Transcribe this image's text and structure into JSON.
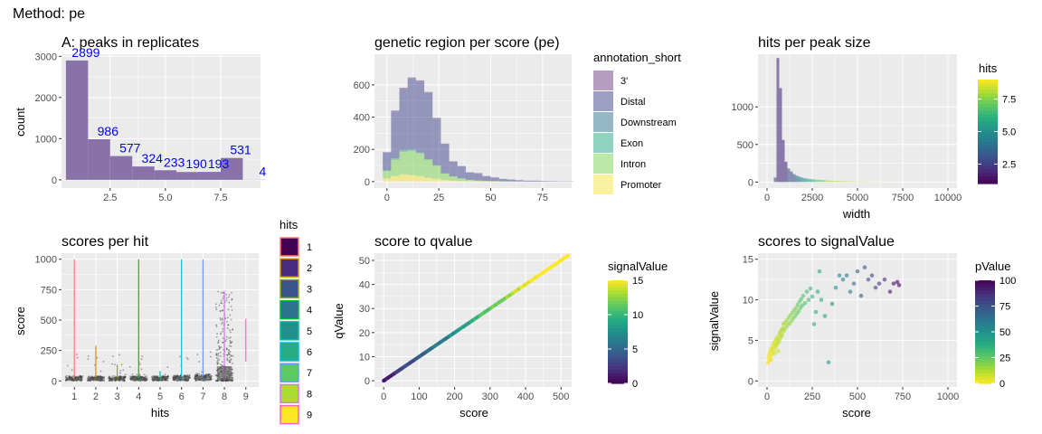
{
  "page_title": "Method: pe",
  "chart_data": [
    {
      "id": "A",
      "type": "bar",
      "title": "A: peaks in replicates",
      "xlabel": "",
      "ylabel": "count",
      "x": [
        1,
        2,
        3,
        4,
        5,
        6,
        7,
        8,
        9
      ],
      "values": [
        2899,
        986,
        577,
        324,
        233,
        190,
        193,
        531,
        4
      ],
      "data_labels": [
        "2899",
        "986",
        "577",
        "324",
        "233",
        "190",
        "193",
        "531",
        "4"
      ],
      "bar_color": "#8872a8",
      "label_color": "#0000ff",
      "xlim": [
        0.3,
        9.3
      ],
      "ylim": [
        -200,
        3050
      ],
      "xticks": [
        2.5,
        5.0,
        7.5
      ],
      "xtick_labels": [
        "2.5",
        "5.0",
        "7.5"
      ],
      "yticks": [
        0,
        1000,
        2000,
        3000
      ],
      "ytick_labels": [
        "0",
        "1000",
        "2000",
        "3000"
      ]
    },
    {
      "id": "B",
      "type": "area",
      "title": "genetic region per score (pe)",
      "xlabel": "",
      "ylabel": "",
      "bin_width": 4,
      "x_bins_start": [
        -2,
        2,
        6,
        10,
        14,
        18,
        22,
        26,
        30,
        34,
        38,
        42,
        46,
        50,
        54,
        58,
        62,
        66,
        70,
        74,
        78,
        82,
        86
      ],
      "series": [
        {
          "name": "3'",
          "color": "#6f3c83",
          "values": [
            3,
            6,
            7,
            8,
            7,
            6,
            5,
            4,
            3,
            2,
            2,
            1,
            1,
            1,
            0,
            0,
            0,
            0,
            0,
            0,
            0,
            0,
            0
          ]
        },
        {
          "name": "Distal",
          "color": "#3b3f8c",
          "values": [
            110,
            290,
            380,
            440,
            440,
            410,
            290,
            180,
            90,
            75,
            45,
            45,
            30,
            22,
            15,
            12,
            8,
            6,
            6,
            4,
            3,
            2,
            2
          ]
        },
        {
          "name": "Downstream",
          "color": "#2d6f8e",
          "values": [
            0,
            0,
            0,
            0,
            0,
            0,
            0,
            0,
            0,
            0,
            0,
            0,
            0,
            0,
            0,
            0,
            0,
            0,
            0,
            0,
            0,
            0,
            0
          ]
        },
        {
          "name": "Exon",
          "color": "#22a884",
          "values": [
            5,
            10,
            10,
            8,
            6,
            5,
            3,
            2,
            2,
            1,
            1,
            0,
            0,
            0,
            0,
            0,
            0,
            0,
            0,
            0,
            0,
            0,
            0
          ]
        },
        {
          "name": "Intron",
          "color": "#7ad151",
          "values": [
            45,
            100,
            140,
            150,
            140,
            110,
            80,
            40,
            25,
            15,
            8,
            5,
            3,
            2,
            2,
            1,
            1,
            0,
            0,
            0,
            0,
            0,
            0
          ]
        },
        {
          "name": "Promoter",
          "color": "#f0e442",
          "values": [
            20,
            35,
            45,
            40,
            35,
            25,
            18,
            10,
            6,
            4,
            2,
            2,
            1,
            1,
            0,
            0,
            0,
            0,
            0,
            0,
            0,
            0,
            0
          ]
        }
      ],
      "legend_title": "annotation_short",
      "legend_position": "right",
      "xlim": [
        -6,
        89
      ],
      "ylim": [
        -40,
        790
      ],
      "xticks": [
        0,
        25,
        50,
        75
      ],
      "xtick_labels": [
        "0",
        "25",
        "50",
        "75"
      ],
      "yticks": [
        0,
        200,
        400,
        600
      ],
      "ytick_labels": [
        "0",
        "200",
        "400",
        "600"
      ]
    },
    {
      "id": "C",
      "type": "bar",
      "title": "hits per peak size",
      "xlabel": "width",
      "ylabel": "",
      "bin_width": 150,
      "x_bins_start": [
        375,
        525,
        675,
        825,
        975,
        1125,
        1275,
        1425,
        1575,
        1725,
        1875,
        2025,
        2175,
        2325,
        2475,
        2625,
        2775,
        2925,
        3075,
        3225,
        3375,
        3525,
        3675,
        3825,
        3975,
        4125,
        4275,
        4425,
        4575,
        4725,
        4875,
        5025,
        5175,
        5325,
        5475,
        5625,
        5775,
        5925,
        6075,
        6225,
        6375,
        6525,
        6675,
        6825,
        6975,
        7125,
        7275
      ],
      "values": [
        60,
        1650,
        1250,
        560,
        270,
        180,
        140,
        105,
        85,
        70,
        60,
        50,
        45,
        40,
        36,
        33,
        30,
        28,
        25,
        22,
        20,
        18,
        16,
        14,
        12,
        11,
        10,
        9,
        8,
        7,
        7,
        6,
        6,
        5,
        5,
        4,
        4,
        3,
        3,
        3,
        2,
        2,
        2,
        2,
        1,
        1,
        1
      ],
      "mean_hits": [
        3,
        2,
        2,
        2,
        2,
        3,
        3,
        3,
        4,
        4,
        5,
        5,
        6,
        6,
        6,
        7,
        7,
        7,
        7,
        8,
        8,
        8,
        8,
        8,
        8,
        8,
        8,
        8,
        8,
        8,
        8,
        8,
        8,
        8,
        8,
        8,
        8,
        8,
        8,
        8,
        8,
        8,
        8,
        8,
        8,
        8,
        8
      ],
      "legend_title": "hits",
      "legend_ticks": [
        2.5,
        5.0,
        7.5
      ],
      "legend_tick_labels": [
        "2.5",
        "5.0",
        "7.5"
      ],
      "legend_range": [
        1,
        9
      ],
      "legend_position": "right",
      "xlim": [
        -500,
        10500
      ],
      "ylim": [
        -80,
        1700
      ],
      "xticks": [
        0,
        2500,
        5000,
        7500,
        10000
      ],
      "xtick_labels": [
        "0",
        "2500",
        "5000",
        "7500",
        "10000"
      ],
      "yticks": [
        0,
        500,
        1000
      ],
      "ytick_labels": [
        "0",
        "500",
        "1000"
      ]
    },
    {
      "id": "D",
      "type": "scatter",
      "title": "scores per hit",
      "xlabel": "hits",
      "ylabel": "score",
      "categories": [
        "1",
        "2",
        "3",
        "4",
        "5",
        "6",
        "7",
        "8",
        "9"
      ],
      "hit_colors": [
        "#f8766d",
        "#d39200",
        "#93aa00",
        "#00ba38",
        "#00c19f",
        "#00b9e3",
        "#619cff",
        "#db72fb",
        "#ff61c3"
      ],
      "max_score": [
        1000,
        290,
        135,
        1000,
        80,
        1000,
        1000,
        740,
        510
      ],
      "min_score": [
        0,
        0,
        0,
        0,
        0,
        0,
        0,
        0,
        160
      ],
      "typical_score": [
        25,
        25,
        25,
        25,
        25,
        30,
        35,
        100,
        300
      ],
      "legend_title": "hits",
      "legend_labels": [
        "1",
        "2",
        "3",
        "4",
        "5",
        "6",
        "7",
        "8",
        "9"
      ],
      "legend_fills": [
        "#440154",
        "#472d7b",
        "#3b528b",
        "#2c728e",
        "#21908d",
        "#27ad81",
        "#5dc963",
        "#aadc32",
        "#fde725"
      ],
      "legend_position": "left",
      "xlim": [
        0.4,
        9.6
      ],
      "ylim": [
        -50,
        1050
      ],
      "yticks": [
        0,
        250,
        500,
        750,
        1000
      ],
      "ytick_labels": [
        "0",
        "250",
        "500",
        "750",
        "1000"
      ]
    },
    {
      "id": "E",
      "type": "scatter",
      "title": "score to qvalue",
      "xlabel": "score",
      "ylabel": "qValue",
      "relation": "qValue = score / 10",
      "x_range": [
        0,
        520
      ],
      "legend_title": "signalValue",
      "legend_ticks": [
        0,
        5,
        10,
        15
      ],
      "legend_tick_labels": [
        "0",
        "5",
        "10",
        "15"
      ],
      "legend_range": [
        0,
        15
      ],
      "legend_position": "right",
      "xlim": [
        -26,
        530
      ],
      "ylim": [
        -2.6,
        53
      ],
      "xticks": [
        0,
        100,
        200,
        300,
        400,
        500
      ],
      "xtick_labels": [
        "0",
        "100",
        "200",
        "300",
        "400",
        "500"
      ],
      "yticks": [
        0,
        10,
        20,
        30,
        40,
        50
      ],
      "ytick_labels": [
        "0",
        "10",
        "20",
        "30",
        "40",
        "50"
      ]
    },
    {
      "id": "F",
      "type": "scatter",
      "title": "scores to signalValue",
      "xlabel": "score",
      "ylabel": "signalValue",
      "points": [
        [
          5,
          2.2
        ],
        [
          8,
          2.8
        ],
        [
          10,
          3.2
        ],
        [
          12,
          2.5
        ],
        [
          15,
          3.5
        ],
        [
          18,
          3.0
        ],
        [
          20,
          3.8
        ],
        [
          22,
          2.6
        ],
        [
          25,
          4.0
        ],
        [
          28,
          3.3
        ],
        [
          30,
          4.2
        ],
        [
          33,
          3.6
        ],
        [
          35,
          4.5
        ],
        [
          38,
          3.9
        ],
        [
          40,
          4.7
        ],
        [
          42,
          3.4
        ],
        [
          45,
          4.9
        ],
        [
          48,
          4.2
        ],
        [
          50,
          5.1
        ],
        [
          52,
          4.4
        ],
        [
          55,
          5.3
        ],
        [
          58,
          4.6
        ],
        [
          60,
          5.0
        ],
        [
          62,
          3.7
        ],
        [
          65,
          5.6
        ],
        [
          68,
          4.8
        ],
        [
          70,
          5.9
        ],
        [
          72,
          5.2
        ],
        [
          75,
          6.1
        ],
        [
          78,
          5.5
        ],
        [
          80,
          6.3
        ],
        [
          85,
          5.7
        ],
        [
          88,
          6.5
        ],
        [
          90,
          7.0
        ],
        [
          95,
          6.2
        ],
        [
          100,
          7.2
        ],
        [
          105,
          6.6
        ],
        [
          110,
          7.5
        ],
        [
          115,
          6.9
        ],
        [
          120,
          7.8
        ],
        [
          125,
          7.1
        ],
        [
          130,
          8.1
        ],
        [
          135,
          7.4
        ],
        [
          140,
          8.4
        ],
        [
          145,
          7.7
        ],
        [
          150,
          8.7
        ],
        [
          155,
          8.0
        ],
        [
          160,
          9.0
        ],
        [
          165,
          8.3
        ],
        [
          170,
          9.4
        ],
        [
          175,
          8.6
        ],
        [
          180,
          9.8
        ],
        [
          185,
          9.0
        ],
        [
          190,
          10.1
        ],
        [
          195,
          9.3
        ],
        [
          200,
          10.5
        ],
        [
          210,
          9.6
        ],
        [
          220,
          11.0
        ],
        [
          230,
          10.0
        ],
        [
          240,
          11.4
        ],
        [
          250,
          10.4
        ],
        [
          260,
          7.0
        ],
        [
          270,
          8.5
        ],
        [
          280,
          11.0
        ],
        [
          290,
          13.5
        ],
        [
          300,
          10.0
        ],
        [
          320,
          8.0
        ],
        [
          340,
          2.3
        ],
        [
          360,
          9.5
        ],
        [
          380,
          11.5
        ],
        [
          400,
          13.0
        ],
        [
          420,
          12.5
        ],
        [
          440,
          13.0
        ],
        [
          460,
          11.0
        ],
        [
          480,
          12.0
        ],
        [
          500,
          13.5
        ],
        [
          520,
          10.5
        ],
        [
          540,
          14.0
        ],
        [
          560,
          12.5
        ],
        [
          580,
          13.0
        ],
        [
          600,
          11.5
        ],
        [
          620,
          12.0
        ],
        [
          650,
          12.5
        ],
        [
          680,
          11.0
        ],
        [
          700,
          12.0
        ],
        [
          720,
          12.2
        ],
        [
          730,
          11.8
        ]
      ],
      "legend_title": "pValue",
      "legend_ticks": [
        0,
        25,
        50,
        75,
        100
      ],
      "legend_tick_labels": [
        "0",
        "25",
        "50",
        "75",
        "100"
      ],
      "legend_range": [
        0,
        100
      ],
      "legend_position": "right",
      "xlim": [
        -50,
        1050
      ],
      "ylim": [
        -0.75,
        15.75
      ],
      "xticks": [
        0,
        250,
        500,
        750,
        1000
      ],
      "xtick_labels": [
        "0",
        "250",
        "500",
        "750",
        "1000"
      ],
      "yticks": [
        0,
        5,
        10,
        15
      ],
      "ytick_labels": [
        "0",
        "5",
        "10",
        "15"
      ]
    }
  ]
}
